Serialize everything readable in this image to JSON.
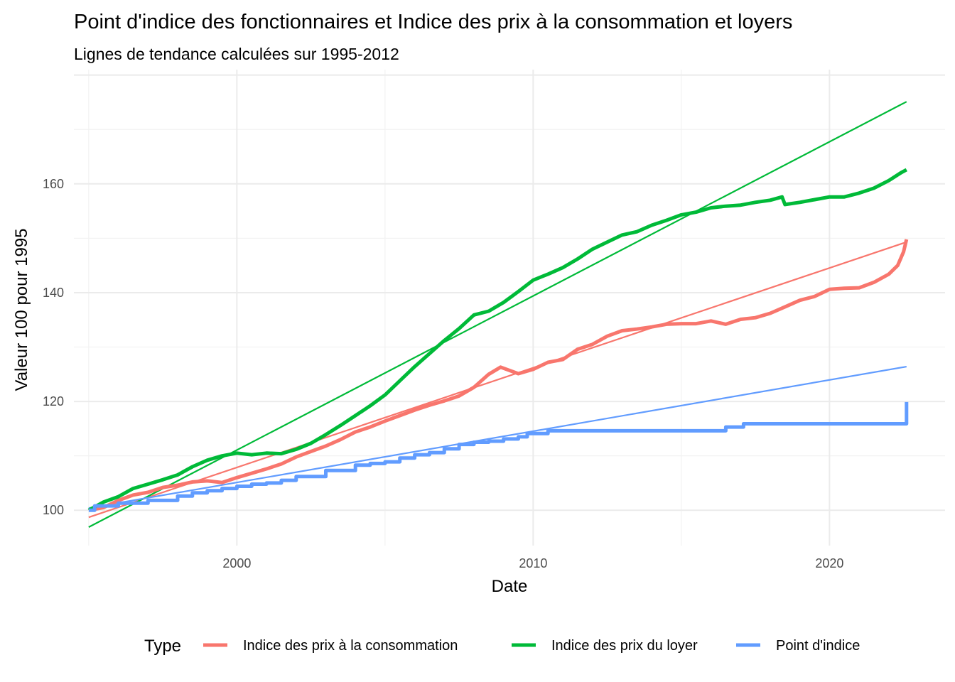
{
  "chart_data": {
    "type": "line",
    "title": "Point d'indice des fonctionnaires et Indice des prix à la consommation et loyers",
    "subtitle": "Lignes de tendance calculées sur 1995-2012",
    "xlabel": "Date",
    "ylabel": "Valeur 100 pour 1995",
    "xlim": [
      1994.5,
      2023.9
    ],
    "ylim": [
      93.5,
      181
    ],
    "x_ticks": [
      2000,
      2010,
      2020
    ],
    "x_tick_labels": [
      "2000",
      "2010",
      "2020"
    ],
    "y_ticks": [
      100,
      120,
      140,
      160
    ],
    "y_tick_labels": [
      "100",
      "120",
      "140",
      "160"
    ],
    "grid": true,
    "legend": {
      "title": "Type",
      "position": "bottom"
    },
    "series": [
      {
        "name": "Indice des prix à la consommation",
        "color": "#F8766D",
        "points": [
          [
            1995.0,
            100.0
          ],
          [
            1995.5,
            100.5
          ],
          [
            1996.0,
            101.8
          ],
          [
            1996.5,
            102.8
          ],
          [
            1997.0,
            103.3
          ],
          [
            1997.5,
            104.2
          ],
          [
            1998.0,
            104.6
          ],
          [
            1998.5,
            105.2
          ],
          [
            1999.0,
            105.4
          ],
          [
            1999.5,
            105.1
          ],
          [
            2000.0,
            106.0
          ],
          [
            2000.5,
            106.8
          ],
          [
            2001.0,
            107.6
          ],
          [
            2001.5,
            108.5
          ],
          [
            2002.0,
            109.8
          ],
          [
            2002.5,
            110.8
          ],
          [
            2003.0,
            111.8
          ],
          [
            2003.5,
            113.0
          ],
          [
            2004.0,
            114.4
          ],
          [
            2004.5,
            115.3
          ],
          [
            2005.0,
            116.4
          ],
          [
            2005.5,
            117.4
          ],
          [
            2006.0,
            118.4
          ],
          [
            2006.5,
            119.3
          ],
          [
            2007.0,
            120.1
          ],
          [
            2007.5,
            121.0
          ],
          [
            2008.0,
            122.6
          ],
          [
            2008.5,
            125.0
          ],
          [
            2008.9,
            126.3
          ],
          [
            2009.5,
            125.1
          ],
          [
            2010.0,
            125.9
          ],
          [
            2010.5,
            127.2
          ],
          [
            2011.0,
            127.7
          ],
          [
            2011.5,
            129.6
          ],
          [
            2012.0,
            130.5
          ],
          [
            2012.5,
            132.0
          ],
          [
            2013.0,
            133.0
          ],
          [
            2013.5,
            133.3
          ],
          [
            2014.0,
            133.7
          ],
          [
            2014.5,
            134.2
          ],
          [
            2015.0,
            134.3
          ],
          [
            2015.5,
            134.3
          ],
          [
            2016.0,
            134.8
          ],
          [
            2016.5,
            134.2
          ],
          [
            2017.0,
            135.1
          ],
          [
            2017.5,
            135.4
          ],
          [
            2018.0,
            136.2
          ],
          [
            2018.5,
            137.4
          ],
          [
            2019.0,
            138.6
          ],
          [
            2019.5,
            139.3
          ],
          [
            2020.0,
            140.6
          ],
          [
            2020.5,
            140.8
          ],
          [
            2021.0,
            140.9
          ],
          [
            2021.5,
            141.9
          ],
          [
            2022.0,
            143.4
          ],
          [
            2022.3,
            145.0
          ],
          [
            2022.5,
            147.5
          ],
          [
            2022.6,
            149.8
          ]
        ]
      },
      {
        "name": "Indice des prix du loyer",
        "color": "#00BA38",
        "points": [
          [
            1995.0,
            100.0
          ],
          [
            1995.5,
            101.5
          ],
          [
            1996.0,
            102.5
          ],
          [
            1996.5,
            104.0
          ],
          [
            1997.0,
            104.8
          ],
          [
            1997.5,
            105.6
          ],
          [
            1998.0,
            106.5
          ],
          [
            1998.5,
            108.0
          ],
          [
            1999.0,
            109.2
          ],
          [
            1999.5,
            110.0
          ],
          [
            2000.0,
            110.5
          ],
          [
            2000.5,
            110.2
          ],
          [
            2001.0,
            110.5
          ],
          [
            2001.5,
            110.4
          ],
          [
            2002.0,
            111.2
          ],
          [
            2002.5,
            112.3
          ],
          [
            2003.0,
            113.9
          ],
          [
            2003.5,
            115.6
          ],
          [
            2004.0,
            117.4
          ],
          [
            2004.5,
            119.2
          ],
          [
            2005.0,
            121.2
          ],
          [
            2005.5,
            123.8
          ],
          [
            2006.0,
            126.4
          ],
          [
            2006.5,
            128.8
          ],
          [
            2007.0,
            131.2
          ],
          [
            2007.5,
            133.4
          ],
          [
            2008.0,
            135.9
          ],
          [
            2008.5,
            136.6
          ],
          [
            2009.0,
            138.2
          ],
          [
            2009.5,
            140.2
          ],
          [
            2010.0,
            142.3
          ],
          [
            2010.5,
            143.4
          ],
          [
            2011.0,
            144.6
          ],
          [
            2011.5,
            146.2
          ],
          [
            2012.0,
            148.0
          ],
          [
            2012.5,
            149.3
          ],
          [
            2013.0,
            150.6
          ],
          [
            2013.5,
            151.2
          ],
          [
            2014.0,
            152.4
          ],
          [
            2014.5,
            153.3
          ],
          [
            2015.0,
            154.3
          ],
          [
            2015.5,
            154.8
          ],
          [
            2016.0,
            155.6
          ],
          [
            2016.5,
            155.9
          ],
          [
            2017.0,
            156.1
          ],
          [
            2017.5,
            156.6
          ],
          [
            2018.0,
            157.0
          ],
          [
            2018.4,
            157.6
          ],
          [
            2018.5,
            156.2
          ],
          [
            2019.0,
            156.6
          ],
          [
            2019.5,
            157.1
          ],
          [
            2020.0,
            157.6
          ],
          [
            2020.5,
            157.6
          ],
          [
            2021.0,
            158.3
          ],
          [
            2021.5,
            159.2
          ],
          [
            2022.0,
            160.6
          ],
          [
            2022.4,
            162.0
          ],
          [
            2022.6,
            162.6
          ]
        ]
      },
      {
        "name": "Point d'indice",
        "color": "#619CFF",
        "steps": [
          [
            1995.0,
            100.0
          ],
          [
            1995.2,
            100.8
          ],
          [
            1996.0,
            101.3
          ],
          [
            1997.0,
            101.8
          ],
          [
            1998.0,
            102.6
          ],
          [
            1998.5,
            103.2
          ],
          [
            1999.0,
            103.6
          ],
          [
            1999.5,
            104.0
          ],
          [
            2000.0,
            104.4
          ],
          [
            2000.5,
            104.8
          ],
          [
            2001.0,
            105.0
          ],
          [
            2001.5,
            105.5
          ],
          [
            2002.0,
            106.2
          ],
          [
            2003.0,
            107.3
          ],
          [
            2004.0,
            108.3
          ],
          [
            2004.5,
            108.6
          ],
          [
            2005.0,
            108.9
          ],
          [
            2005.5,
            109.6
          ],
          [
            2006.0,
            110.2
          ],
          [
            2006.5,
            110.6
          ],
          [
            2007.0,
            111.3
          ],
          [
            2007.5,
            112.1
          ],
          [
            2008.0,
            112.5
          ],
          [
            2008.5,
            112.7
          ],
          [
            2009.0,
            113.1
          ],
          [
            2009.5,
            113.5
          ],
          [
            2009.8,
            114.1
          ],
          [
            2010.5,
            114.6
          ],
          [
            2016.5,
            115.3
          ],
          [
            2017.1,
            115.9
          ],
          [
            2022.6,
            115.9
          ]
        ],
        "final_jump": [
          2022.6,
          119.9
        ]
      }
    ],
    "trend_lines": [
      {
        "name": "Indice des prix à la consommation",
        "color": "#F8766D",
        "x": [
          1995.0,
          2022.6
        ],
        "y": [
          98.7,
          149.3
        ]
      },
      {
        "name": "Indice des prix du loyer",
        "color": "#00BA38",
        "x": [
          1995.0,
          2022.6
        ],
        "y": [
          96.9,
          175.1
        ]
      },
      {
        "name": "Point d'indice",
        "color": "#619CFF",
        "x": [
          1995.0,
          2022.6
        ],
        "y": [
          100.4,
          126.4
        ]
      }
    ]
  }
}
